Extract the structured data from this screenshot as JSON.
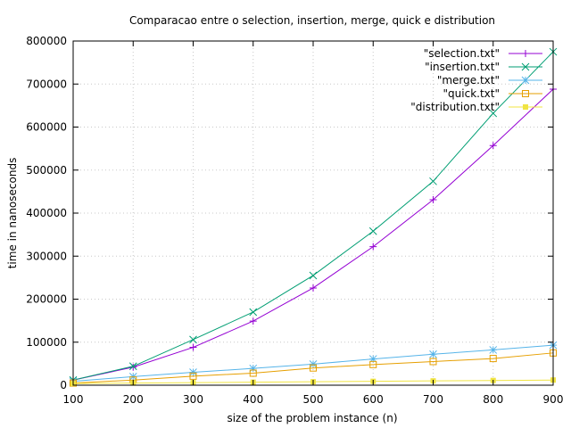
{
  "chart_data": {
    "type": "line",
    "title": "Comparacao entre o selection, insertion, merge, quick e distribution",
    "xlabel": "size of the problem instance (n)",
    "ylabel": "time in nanoseconds",
    "xlim": [
      100,
      900
    ],
    "ylim": [
      0,
      800000
    ],
    "x_ticks": [
      100,
      200,
      300,
      400,
      500,
      600,
      700,
      800,
      900
    ],
    "y_ticks": [
      0,
      100000,
      200000,
      300000,
      400000,
      500000,
      600000,
      700000,
      800000
    ],
    "grid": true,
    "legend_position": "top-right",
    "x": [
      100,
      200,
      300,
      400,
      500,
      600,
      700,
      800,
      900
    ],
    "series": [
      {
        "name": "\"selection.txt\"",
        "color": "#9400d3",
        "marker": "plus",
        "values": [
          12000,
          42000,
          88000,
          149000,
          226000,
          322000,
          431000,
          557000,
          688000
        ]
      },
      {
        "name": "\"insertion.txt\"",
        "color": "#009e73",
        "marker": "cross",
        "values": [
          12000,
          44000,
          106000,
          170000,
          255000,
          358000,
          474000,
          632000,
          775000
        ]
      },
      {
        "name": "\"merge.txt\"",
        "color": "#56b4e9",
        "marker": "star",
        "values": [
          9000,
          20000,
          30000,
          39000,
          49000,
          61000,
          72000,
          82000,
          93000
        ]
      },
      {
        "name": "\"quick.txt\"",
        "color": "#e69f00",
        "marker": "square",
        "values": [
          5000,
          12000,
          21000,
          28000,
          40000,
          48000,
          55000,
          62000,
          75000
        ]
      },
      {
        "name": "\"distribution.txt\"",
        "color": "#f0e442",
        "marker": "filled-square",
        "values": [
          4000,
          5000,
          6000,
          7000,
          8000,
          9000,
          10000,
          11000,
          12000
        ]
      }
    ]
  }
}
